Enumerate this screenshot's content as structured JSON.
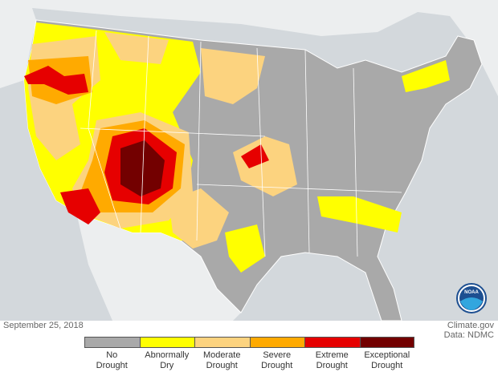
{
  "footer": {
    "date": "September 25, 2018",
    "credit": "Climate.gov",
    "source": "Data: NDMC",
    "logo": "NOAA"
  },
  "legend": {
    "items": [
      {
        "label": "No Drought",
        "color": "#a9a9a9"
      },
      {
        "label": "Abnormally Dry",
        "color": "#ffff00"
      },
      {
        "label": "Moderate Drought",
        "color": "#fcd37f"
      },
      {
        "label": "Severe Drought",
        "color": "#ffaa00"
      },
      {
        "label": "Extreme Drought",
        "color": "#e60000"
      },
      {
        "label": "Exceptional Drought",
        "color": "#730000"
      }
    ]
  }
}
